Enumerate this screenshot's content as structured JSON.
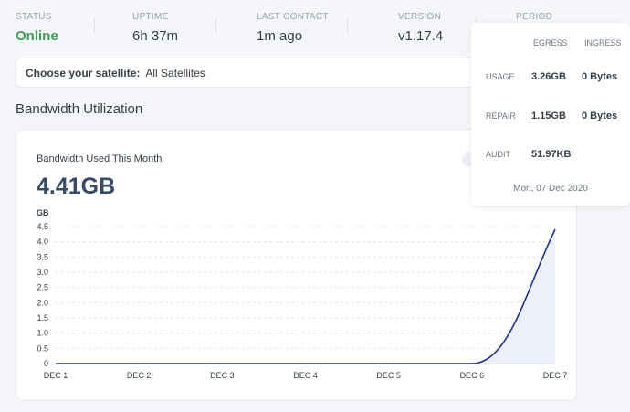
{
  "stats": [
    {
      "label": "STATUS",
      "value": "Online"
    },
    {
      "label": "UPTIME",
      "value": "6h 37m"
    },
    {
      "label": "LAST CONTACT",
      "value": "1m ago"
    },
    {
      "label": "VERSION",
      "value": "v1.17.4"
    },
    {
      "label": "PERIOD",
      "value": ""
    }
  ],
  "satellite": {
    "label": "Choose your satellite:",
    "value": "All Satellites"
  },
  "section_title": "Bandwidth Utilization",
  "card": {
    "subtitle": "Bandwidth Used This Month",
    "total": "4.41GB"
  },
  "tooltip": {
    "headers": {
      "egress": "EGRESS",
      "ingress": "INGRESS"
    },
    "rows": [
      {
        "label": "USAGE",
        "egress": "3.26GB",
        "ingress": "0 Bytes"
      },
      {
        "label": "REPAIR",
        "egress": "1.15GB",
        "ingress": "0 Bytes"
      },
      {
        "label": "AUDIT",
        "egress": "51.97KB",
        "ingress": ""
      }
    ],
    "date": "Mon, 07 Dec 2020"
  },
  "colors": {
    "line": "#1a2f8f",
    "fill": "#eef1fb",
    "online": "#3e9f52"
  },
  "chart_data": {
    "type": "area",
    "ylabel": "GB",
    "x": [
      "DEC 1",
      "DEC 2",
      "DEC 3",
      "DEC 4",
      "DEC 5",
      "DEC 6",
      "DEC 7"
    ],
    "y": [
      0,
      0,
      0,
      0,
      0,
      0,
      4.41
    ],
    "yticks": [
      "0",
      "0.5",
      "1.0",
      "1.5",
      "2.0",
      "2.5",
      "3.0",
      "3.5",
      "4.0",
      "4.5"
    ],
    "ylim": [
      0,
      4.5
    ],
    "grid": true
  }
}
